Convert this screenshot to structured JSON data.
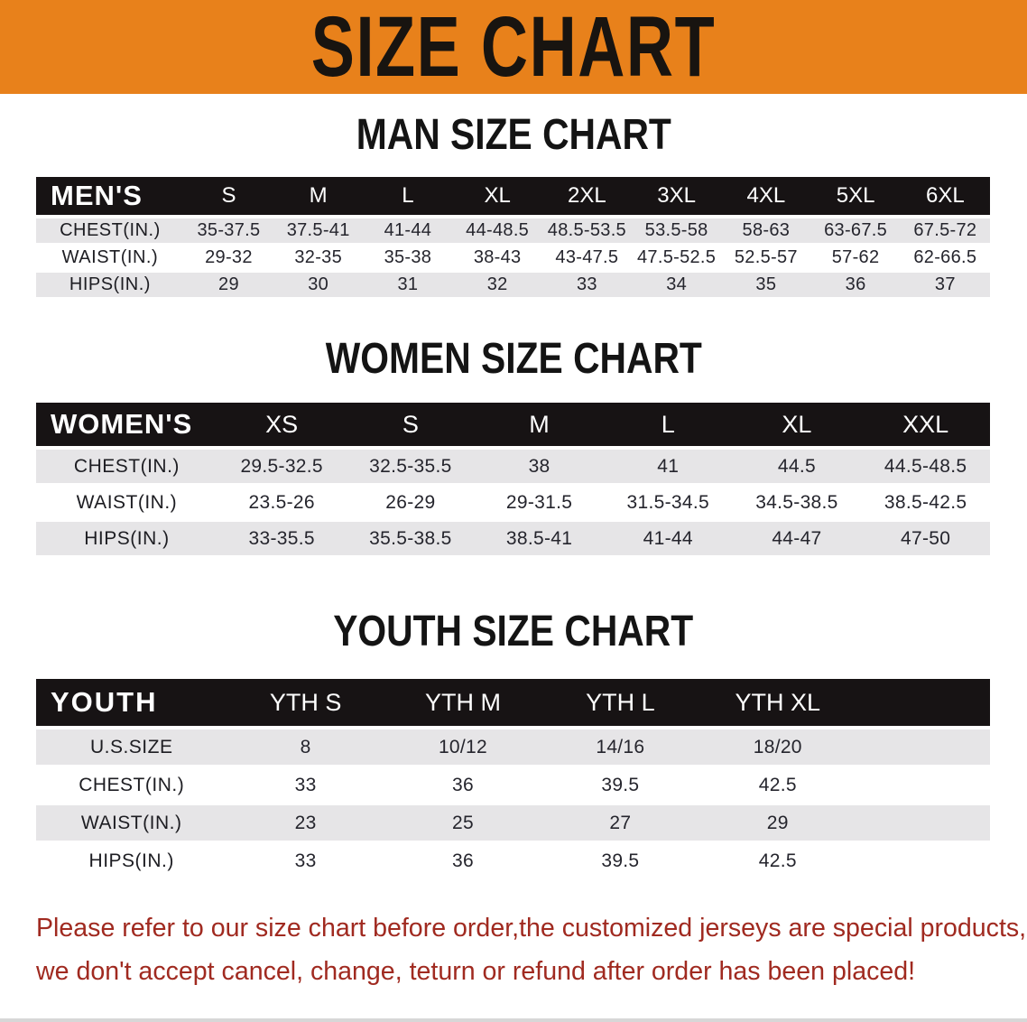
{
  "banner": {
    "title": "SIZE CHART"
  },
  "colors": {
    "banner_bg": "#e8811b",
    "table_header_bg": "#171314",
    "row_stripe_gray": "#e6e5e7",
    "disclaimer_red": "#a02a20"
  },
  "sections": [
    {
      "title": "MAN SIZE CHART",
      "corner": "MEN'S",
      "columns": [
        "S",
        "M",
        "L",
        "XL",
        "2XL",
        "3XL",
        "4XL",
        "5XL",
        "6XL"
      ],
      "rows": [
        {
          "label": "CHEST(IN.)",
          "values": [
            "35-37.5",
            "37.5-41",
            "41-44",
            "44-48.5",
            "48.5-53.5",
            "53.5-58",
            "58-63",
            "63-67.5",
            "67.5-72"
          ]
        },
        {
          "label": "WAIST(IN.)",
          "values": [
            "29-32",
            "32-35",
            "35-38",
            "38-43",
            "43-47.5",
            "47.5-52.5",
            "52.5-57",
            "57-62",
            "62-66.5"
          ]
        },
        {
          "label": "HIPS(IN.)",
          "values": [
            "29",
            "30",
            "31",
            "32",
            "33",
            "34",
            "35",
            "36",
            "37"
          ]
        }
      ]
    },
    {
      "title": "WOMEN SIZE CHART",
      "corner": "WOMEN'S",
      "columns": [
        "XS",
        "S",
        "M",
        "L",
        "XL",
        "XXL"
      ],
      "rows": [
        {
          "label": "CHEST(IN.)",
          "values": [
            "29.5-32.5",
            "32.5-35.5",
            "38",
            "41",
            "44.5",
            "44.5-48.5"
          ]
        },
        {
          "label": "WAIST(IN.)",
          "values": [
            "23.5-26",
            "26-29",
            "29-31.5",
            "31.5-34.5",
            "34.5-38.5",
            "38.5-42.5"
          ]
        },
        {
          "label": "HIPS(IN.)",
          "values": [
            "33-35.5",
            "35.5-38.5",
            "38.5-41",
            "41-44",
            "44-47",
            "47-50"
          ]
        }
      ]
    },
    {
      "title": "YOUTH SIZE CHART",
      "corner": "YOUTH",
      "columns": [
        "YTH S",
        "YTH M",
        "YTH L",
        "YTH XL"
      ],
      "rows": [
        {
          "label": "U.S.SIZE",
          "values": [
            "8",
            "10/12",
            "14/16",
            "18/20"
          ]
        },
        {
          "label": "CHEST(IN.)",
          "values": [
            "33",
            "36",
            "39.5",
            "42.5"
          ]
        },
        {
          "label": "WAIST(IN.)",
          "values": [
            "23",
            "25",
            "27",
            "29"
          ]
        },
        {
          "label": "HIPS(IN.)",
          "values": [
            "33",
            "36",
            "39.5",
            "42.5"
          ]
        }
      ]
    }
  ],
  "disclaimer": {
    "line1": "Please refer to our size chart before order,the customized jerseys are special products,",
    "line2": "we don't accept cancel, change, teturn or refund after order has been placed!"
  }
}
